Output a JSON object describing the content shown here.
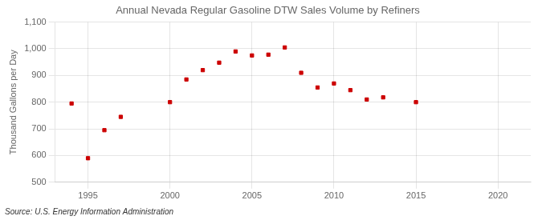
{
  "chart_data": {
    "type": "scatter",
    "title": "Annual Nevada Regular Gasoline DTW Sales Volume by Refiners",
    "ylabel": "Thousand Gallons per Day",
    "annotations": [
      "Source: U.S. Energy Information Administration"
    ],
    "x": [
      1994,
      1995,
      1996,
      1997,
      2000,
      2001,
      2002,
      2003,
      2004,
      2005,
      2006,
      2007,
      2008,
      2009,
      2010,
      2011,
      2012,
      2013,
      2015
    ],
    "values": [
      795,
      590,
      695,
      745,
      800,
      885,
      920,
      948,
      990,
      975,
      978,
      1005,
      910,
      855,
      870,
      845,
      810,
      818,
      800
    ],
    "color": "#cc0000",
    "marker": "square",
    "xlim": [
      1993,
      2022
    ],
    "ylim": [
      500,
      1100
    ],
    "xticks": [
      1995,
      2000,
      2005,
      2010,
      2015,
      2020
    ],
    "yticks": [
      500,
      600,
      700,
      800,
      900,
      {
        "value": 1000,
        "label": "1,000"
      },
      {
        "value": 1100,
        "label": "1,100"
      }
    ],
    "grid": true
  }
}
